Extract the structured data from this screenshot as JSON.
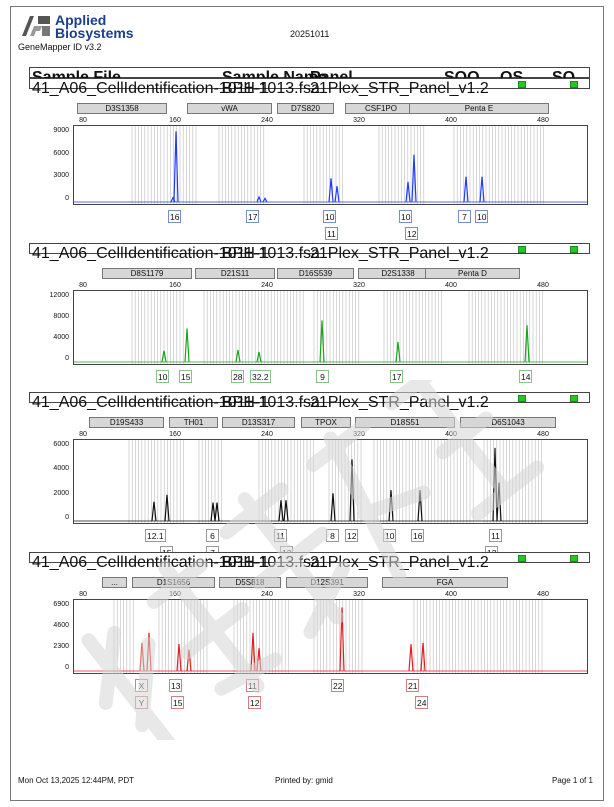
{
  "header": {
    "brand_line1": "Applied",
    "brand_line2": "Biosystems",
    "software": "GeneMapper ID v3.2",
    "report_date": "20251011"
  },
  "table_header": {
    "sample_file": "Sample File",
    "sample_name": "Sample Name",
    "panel": "Panel",
    "sqo": "SQO",
    "os": "OS",
    "sq": "SQ"
  },
  "panels": [
    {
      "name": "blue",
      "color": "#1f3bff",
      "sample_file": "41_A06_CellIdentification-1011-1013.fsa",
      "sample_name": "BPH-1",
      "panel_name": "21Plex_STR_Panel_v1.2",
      "markers": [
        "D3S1358",
        "vWA",
        "D7S820",
        "CSF1PO",
        "Penta E"
      ],
      "x_ticks": [
        "80",
        "160",
        "240",
        "320",
        "400",
        "480"
      ],
      "y_ticks": [
        "9000",
        "6000",
        "3000",
        "0"
      ],
      "alleles_top": [
        "16",
        "17",
        "10",
        "10",
        "7",
        "10"
      ],
      "alleles_bottom": [
        "11",
        "12"
      ]
    },
    {
      "name": "green",
      "color": "#1aa51a",
      "sample_file": "41_A06_CellIdentification-1011-1013.fsa",
      "sample_name": "BPH-1",
      "panel_name": "21Plex_STR_Panel_v1.2",
      "markers": [
        "D8S1179",
        "D21S11",
        "D16S539",
        "D2S1338",
        "Penta D"
      ],
      "x_ticks": [
        "80",
        "160",
        "240",
        "320",
        "400",
        "480"
      ],
      "y_ticks": [
        "12000",
        "8000",
        "4000",
        "0"
      ],
      "alleles_top": [
        "10",
        "15",
        "28",
        "32.2",
        "9",
        "17",
        "14"
      ],
      "alleles_bottom": []
    },
    {
      "name": "black",
      "color": "#111111",
      "sample_file": "41_A06_CellIdentification-1011-1013.fsa",
      "sample_name": "BPH-1",
      "panel_name": "21Plex_STR_Panel_v1.2",
      "markers": [
        "D19S433",
        "TH01",
        "D13S317",
        "TPOX",
        "D18S51",
        "D6S1043"
      ],
      "x_ticks": [
        "80",
        "160",
        "240",
        "320",
        "400",
        "480"
      ],
      "y_ticks": [
        "6000",
        "4000",
        "2000",
        "0"
      ],
      "alleles_top": [
        "12.1",
        "6",
        "11",
        "8",
        "12",
        "10",
        "16",
        "11"
      ],
      "alleles_bottom": [
        "15",
        "7",
        "12",
        "12"
      ]
    },
    {
      "name": "red",
      "color": "#e02020",
      "sample_file": "41_A06_CellIdentification-1011-1013.fsa",
      "sample_name": "BPH-1",
      "panel_name": "21Plex_STR_Panel_v1.2",
      "markers": [
        "...",
        "D1S1656",
        "D5S818",
        "D12S391",
        "FGA"
      ],
      "x_ticks": [
        "80",
        "160",
        "240",
        "320",
        "400",
        "480"
      ],
      "y_ticks": [
        "6900",
        "4600",
        "2300",
        "0"
      ],
      "alleles_top": [
        "X",
        "13",
        "11",
        "22",
        "21"
      ],
      "alleles_bottom": [
        "Y",
        "15",
        "12",
        "24"
      ]
    }
  ],
  "footer": {
    "printed_on": "Mon Oct 13,2025 12:44PM, PDT",
    "printed_by": "Printed by: gmid",
    "page": "Page 1 of 1"
  },
  "watermark": "新赛尔生物",
  "colors": {
    "status_ok": "#27c627",
    "brand": "#1b3f8f"
  }
}
